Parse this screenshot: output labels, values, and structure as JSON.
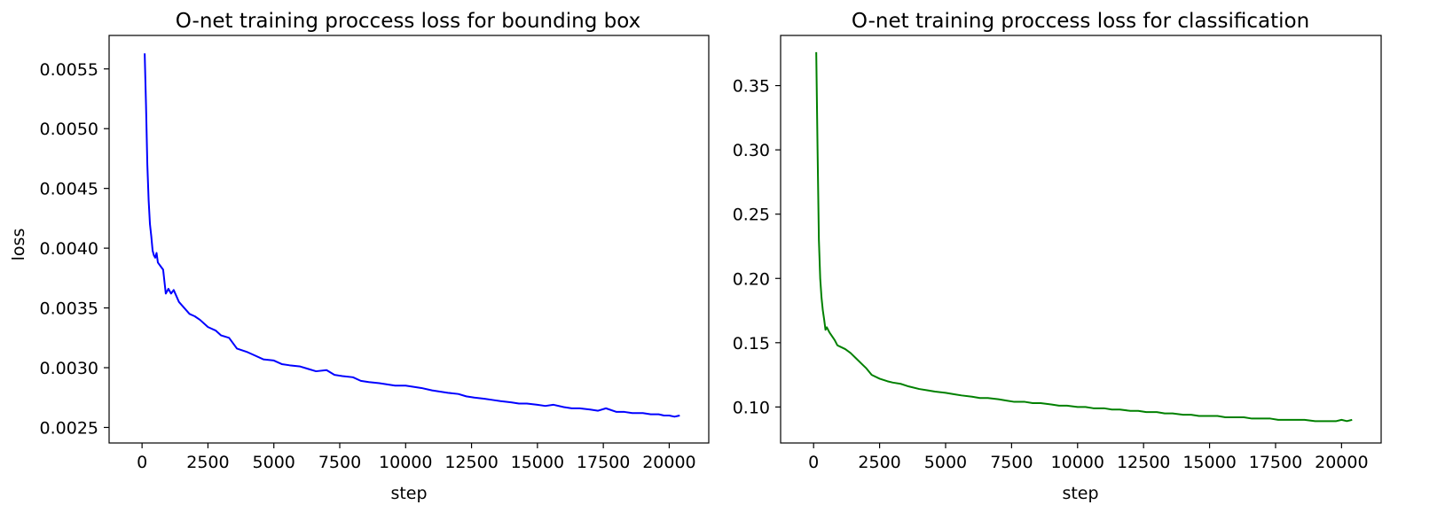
{
  "chart_data": [
    {
      "type": "line",
      "title": "O-net training proccess loss for bounding box",
      "xlabel": "step",
      "ylabel": "loss",
      "color": "#0000ff",
      "xlim": [
        -1250,
        21500
      ],
      "ylim": [
        0.00237,
        0.00578
      ],
      "xticks": [
        0,
        2500,
        5000,
        7500,
        10000,
        12500,
        15000,
        17500,
        20000
      ],
      "xtick_labels": [
        "0",
        "2500",
        "5000",
        "7500",
        "10000",
        "12500",
        "15000",
        "17500",
        "20000"
      ],
      "yticks": [
        0.0025,
        0.003,
        0.0035,
        0.004,
        0.0045,
        0.005,
        0.0055
      ],
      "ytick_labels": [
        "0.0025",
        "0.0030",
        "0.0035",
        "0.0040",
        "0.0045",
        "0.0050",
        "0.0055"
      ],
      "grid": false,
      "series": [
        {
          "x": [
            100,
            150,
            200,
            250,
            300,
            350,
            400,
            450,
            500,
            550,
            600,
            700,
            800,
            900,
            1000,
            1100,
            1200,
            1400,
            1600,
            1800,
            2000,
            2200,
            2500,
            2800,
            3000,
            3300,
            3600,
            4000,
            4300,
            4600,
            5000,
            5300,
            5600,
            6000,
            6300,
            6600,
            7000,
            7300,
            7600,
            8000,
            8300,
            8600,
            9000,
            9300,
            9600,
            10000,
            10300,
            10600,
            11000,
            11300,
            11600,
            12000,
            12300,
            12600,
            13000,
            13300,
            13600,
            14000,
            14300,
            14600,
            15000,
            15300,
            15600,
            16000,
            16300,
            16600,
            17000,
            17300,
            17600,
            18000,
            18300,
            18600,
            19000,
            19300,
            19600,
            19800,
            20000,
            20200,
            20400
          ],
          "y": [
            0.00563,
            0.0052,
            0.0047,
            0.0044,
            0.0042,
            0.0041,
            0.00398,
            0.00394,
            0.00392,
            0.00396,
            0.00388,
            0.00385,
            0.00382,
            0.00362,
            0.00366,
            0.00362,
            0.00365,
            0.00355,
            0.0035,
            0.00345,
            0.00343,
            0.0034,
            0.00334,
            0.00331,
            0.00327,
            0.00325,
            0.00316,
            0.00313,
            0.0031,
            0.00307,
            0.00306,
            0.00303,
            0.00302,
            0.00301,
            0.00299,
            0.00297,
            0.00298,
            0.00294,
            0.00293,
            0.00292,
            0.00289,
            0.00288,
            0.00287,
            0.00286,
            0.00285,
            0.00285,
            0.00284,
            0.00283,
            0.00281,
            0.0028,
            0.00279,
            0.00278,
            0.00276,
            0.00275,
            0.00274,
            0.00273,
            0.00272,
            0.00271,
            0.0027,
            0.0027,
            0.00269,
            0.00268,
            0.00269,
            0.00267,
            0.00266,
            0.00266,
            0.00265,
            0.00264,
            0.00266,
            0.00263,
            0.00263,
            0.00262,
            0.00262,
            0.00261,
            0.00261,
            0.0026,
            0.0026,
            0.00259,
            0.0026
          ]
        }
      ]
    },
    {
      "type": "line",
      "title": "O-net training proccess loss for classification",
      "xlabel": "step",
      "ylabel": "",
      "color": "#008000",
      "xlim": [
        -1250,
        21500
      ],
      "ylim": [
        0.072,
        0.389
      ],
      "xticks": [
        0,
        2500,
        5000,
        7500,
        10000,
        12500,
        15000,
        17500,
        20000
      ],
      "xtick_labels": [
        "0",
        "2500",
        "5000",
        "7500",
        "10000",
        "12500",
        "15000",
        "17500",
        "20000"
      ],
      "yticks": [
        0.1,
        0.15,
        0.2,
        0.25,
        0.3,
        0.35
      ],
      "ytick_labels": [
        "0.10",
        "0.15",
        "0.20",
        "0.25",
        "0.30",
        "0.35"
      ],
      "grid": false,
      "series": [
        {
          "x": [
            100,
            150,
            200,
            250,
            300,
            350,
            400,
            450,
            500,
            600,
            700,
            800,
            900,
            1000,
            1200,
            1400,
            1600,
            1800,
            2000,
            2200,
            2500,
            2800,
            3000,
            3300,
            3600,
            4000,
            4300,
            4600,
            5000,
            5300,
            5600,
            6000,
            6300,
            6600,
            7000,
            7300,
            7600,
            8000,
            8300,
            8600,
            9000,
            9300,
            9600,
            10000,
            10300,
            10600,
            11000,
            11300,
            11600,
            12000,
            12300,
            12600,
            13000,
            13300,
            13600,
            14000,
            14300,
            14600,
            15000,
            15300,
            15600,
            16000,
            16300,
            16600,
            17000,
            17300,
            17600,
            18000,
            18300,
            18600,
            19000,
            19300,
            19600,
            19800,
            20000,
            20200,
            20400
          ],
          "y": [
            0.376,
            0.3,
            0.23,
            0.2,
            0.185,
            0.175,
            0.168,
            0.16,
            0.162,
            0.158,
            0.155,
            0.152,
            0.148,
            0.147,
            0.145,
            0.142,
            0.138,
            0.134,
            0.13,
            0.125,
            0.122,
            0.12,
            0.119,
            0.118,
            0.116,
            0.114,
            0.113,
            0.112,
            0.111,
            0.11,
            0.109,
            0.108,
            0.107,
            0.107,
            0.106,
            0.105,
            0.104,
            0.104,
            0.103,
            0.103,
            0.102,
            0.101,
            0.101,
            0.1,
            0.1,
            0.099,
            0.099,
            0.098,
            0.098,
            0.097,
            0.097,
            0.096,
            0.096,
            0.095,
            0.095,
            0.094,
            0.094,
            0.093,
            0.093,
            0.093,
            0.092,
            0.092,
            0.092,
            0.091,
            0.091,
            0.091,
            0.09,
            0.09,
            0.09,
            0.09,
            0.089,
            0.089,
            0.089,
            0.089,
            0.09,
            0.089,
            0.09
          ]
        }
      ]
    }
  ]
}
